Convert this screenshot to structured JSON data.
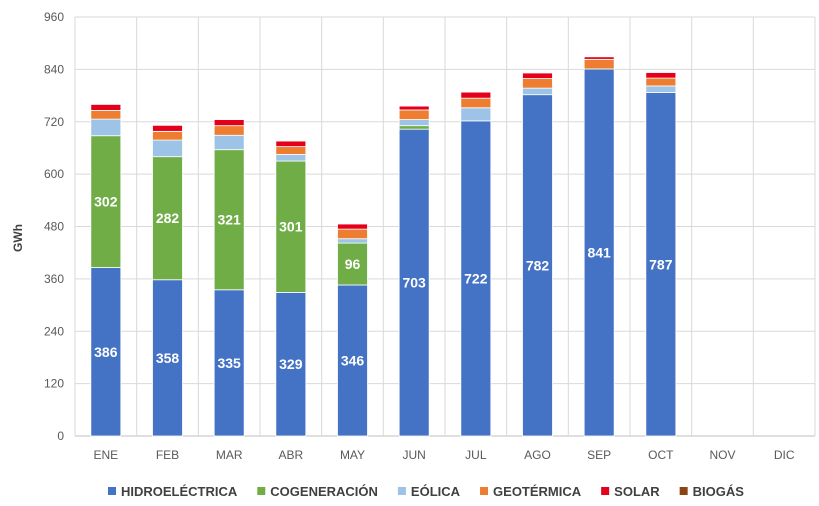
{
  "chart_data": {
    "type": "bar",
    "stacked": true,
    "ylabel": "GWh",
    "ylim": [
      0,
      960
    ],
    "yticks": [
      0,
      120,
      240,
      360,
      480,
      600,
      720,
      840,
      960
    ],
    "grid": true,
    "legend_position": "bottom",
    "categories": [
      "ENE",
      "FEB",
      "MAR",
      "ABR",
      "MAY",
      "JUN",
      "JUL",
      "AGO",
      "SEP",
      "OCT",
      "NOV",
      "DIC"
    ],
    "series": [
      {
        "name": "HIDROELÉCTRICA",
        "color": "#4472c4",
        "labeled": true,
        "values": [
          386,
          358,
          335,
          329,
          346,
          703,
          722,
          782,
          841,
          787,
          0,
          0
        ]
      },
      {
        "name": "COGENERACIÓN",
        "color": "#70ad47",
        "labeled": true,
        "values": [
          302,
          282,
          321,
          301,
          96,
          8,
          0,
          0,
          0,
          0,
          0,
          0
        ]
      },
      {
        "name": "EÓLICA",
        "color": "#9dc3e6",
        "labeled": false,
        "values": [
          38,
          38,
          33,
          15,
          10,
          14,
          30,
          15,
          0,
          15,
          0,
          0
        ]
      },
      {
        "name": "GEOTÉRMICA",
        "color": "#ed7d31",
        "labeled": false,
        "values": [
          20,
          20,
          22,
          18,
          22,
          22,
          22,
          22,
          22,
          18,
          0,
          0
        ]
      },
      {
        "name": "SOLAR",
        "color": "#e4001b",
        "labeled": false,
        "values": [
          14,
          14,
          14,
          13,
          12,
          9,
          14,
          13,
          6,
          13,
          0,
          0
        ]
      },
      {
        "name": "BIOGÁS",
        "color": "#8b4513",
        "labeled": false,
        "values": [
          1,
          1,
          1,
          1,
          1,
          1,
          1,
          1,
          1,
          1,
          0,
          0
        ]
      }
    ]
  }
}
